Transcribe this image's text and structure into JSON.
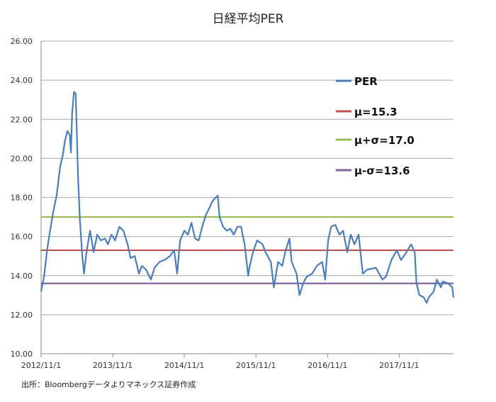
{
  "chart_data": {
    "type": "line",
    "title": "日経平均PER",
    "xlabel": "",
    "ylabel": "",
    "ylim": [
      10,
      26
    ],
    "y_ticks": [
      "10.00",
      "12.00",
      "14.00",
      "16.00",
      "18.00",
      "20.00",
      "22.00",
      "24.00",
      "26.00"
    ],
    "x_unit": "months since 2012/11/1",
    "xlim": [
      0,
      69.1
    ],
    "x_ticks": [
      {
        "label": "2012/11/1",
        "x": 0
      },
      {
        "label": "2013/11/1",
        "x": 12
      },
      {
        "label": "2014/11/1",
        "x": 24
      },
      {
        "label": "2015/11/1",
        "x": 36
      },
      {
        "label": "2016/11/1",
        "x": 48
      },
      {
        "label": "2017/11/1",
        "x": 60
      }
    ],
    "grid": true,
    "legend_position": "top-right",
    "series": [
      {
        "name": "PER",
        "color": "#4a7ebb",
        "type": "line",
        "x": [
          0,
          0.5,
          1,
          1.4,
          2,
          2.6,
          3.2,
          3.6,
          4,
          4.4,
          4.8,
          5,
          5.2,
          5.5,
          5.8,
          6.2,
          6.5,
          6.9,
          7.2,
          7.6,
          8.2,
          8.8,
          9.4,
          10,
          10.7,
          11.2,
          11.8,
          12.4,
          13.1,
          13.8,
          14.5,
          15,
          15.7,
          16.4,
          16.9,
          17.6,
          18.4,
          19,
          19.8,
          20.7,
          21.6,
          22.3,
          22.8,
          23.3,
          24,
          24.6,
          25.2,
          25.8,
          26.4,
          27,
          27.6,
          28.1,
          28.7,
          29.6,
          29.9,
          30.5,
          31.1,
          31.7,
          32.3,
          32.9,
          33.5,
          34.1,
          34.7,
          34.9,
          35.5,
          36.2,
          37.1,
          37.6,
          38.5,
          39,
          39.7,
          40.4,
          40.9,
          41.6,
          42,
          42.8,
          43.3,
          43.9,
          44.5,
          45.4,
          46.2,
          47.1,
          47.6,
          48.1,
          48.6,
          49.3,
          50,
          50.6,
          51.3,
          51.9,
          52.5,
          53.2,
          53.9,
          54.6,
          56.1,
          57.2,
          57.8,
          58.7,
          59.6,
          60.3,
          61,
          62,
          62.6,
          62.9,
          63.4,
          64.1,
          64.6,
          65,
          65.8,
          66.3,
          67,
          67.3,
          68.2,
          68.9,
          69.1
        ],
        "values": [
          13.2,
          13.95,
          15.3,
          16.1,
          17.2,
          18.1,
          19.6,
          20.1,
          20.9,
          21.4,
          21.2,
          20.3,
          22.3,
          23.4,
          23.3,
          19.0,
          16.9,
          15.0,
          14.1,
          15.2,
          16.3,
          15.2,
          16.1,
          15.8,
          15.9,
          15.6,
          16.1,
          15.8,
          16.5,
          16.3,
          15.6,
          14.9,
          15.0,
          14.1,
          14.5,
          14.3,
          13.8,
          14.4,
          14.7,
          14.8,
          15.0,
          15.3,
          14.1,
          15.8,
          16.3,
          16.1,
          16.7,
          15.9,
          15.8,
          16.5,
          17.1,
          17.4,
          17.8,
          18.1,
          17.0,
          16.5,
          16.3,
          16.4,
          16.1,
          16.5,
          16.5,
          15.6,
          14.0,
          14.4,
          15.2,
          15.8,
          15.6,
          15.2,
          14.7,
          13.4,
          14.7,
          14.5,
          15.2,
          15.9,
          14.7,
          14.1,
          13.0,
          13.6,
          13.95,
          14.1,
          14.5,
          14.7,
          13.8,
          15.8,
          16.5,
          16.6,
          16.1,
          16.3,
          15.2,
          16.1,
          15.6,
          16.1,
          14.1,
          14.3,
          14.4,
          13.8,
          13.95,
          14.8,
          15.3,
          14.8,
          15.1,
          15.6,
          15.2,
          13.6,
          13.0,
          12.9,
          12.6,
          12.9,
          13.2,
          13.8,
          13.4,
          13.7,
          13.6,
          13.4,
          12.9
        ]
      },
      {
        "name": "μ=15.3",
        "color": "#c0504d",
        "type": "hline",
        "value": 15.3
      },
      {
        "name": "μ+σ=17.0",
        "color": "#9bbb59",
        "type": "hline",
        "value": 17.0
      },
      {
        "name": "μ-σ=13.6",
        "color": "#8064a2",
        "type": "hline",
        "value": 13.6
      }
    ],
    "source_note": "出所：Bloombergデータよりマネックス証券作成"
  }
}
